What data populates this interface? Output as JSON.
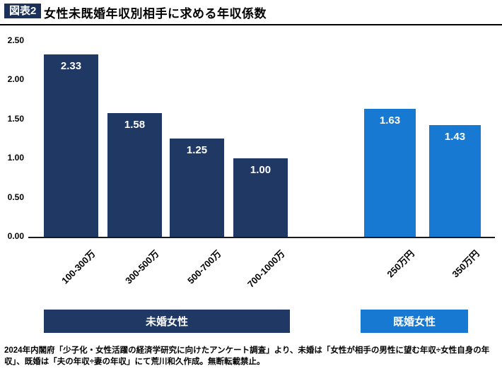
{
  "header": {
    "badge": "図表2",
    "title": "女性未既婚年収別相手に求める年収係数"
  },
  "chart_data": {
    "type": "bar",
    "title": "女性未既婚年収別相手に求める年収係数",
    "xlabel": "",
    "ylabel": "",
    "ylim": [
      0,
      2.5
    ],
    "yticks": [
      "2.50",
      "2.00",
      "1.50",
      "1.00",
      "0.50",
      "0.00"
    ],
    "grid": false,
    "legend_position": "bottom",
    "groups": [
      {
        "name": "未婚女性",
        "color": "#1f3864",
        "categories": [
          "100-300万",
          "300-500万",
          "500-700万",
          "700-1000万"
        ],
        "values": [
          2.33,
          1.58,
          1.25,
          1.0
        ],
        "value_labels": [
          "2.33",
          "1.58",
          "1.25",
          "1.00"
        ]
      },
      {
        "name": "既婚女性",
        "color": "#1779d2",
        "categories": [
          "250万円",
          "350万円"
        ],
        "values": [
          1.63,
          1.43
        ],
        "value_labels": [
          "1.63",
          "1.43"
        ]
      }
    ]
  },
  "footer": {
    "text": "2024年内閣府「少子化・女性活躍の経済学研究に向けたアンケート調査」より、未婚は「女性が相手の男性に望む年収÷女性自身の年収」、既婚は「夫の年収÷妻の年収」にて荒川和久作成。無断転載禁止。"
  }
}
